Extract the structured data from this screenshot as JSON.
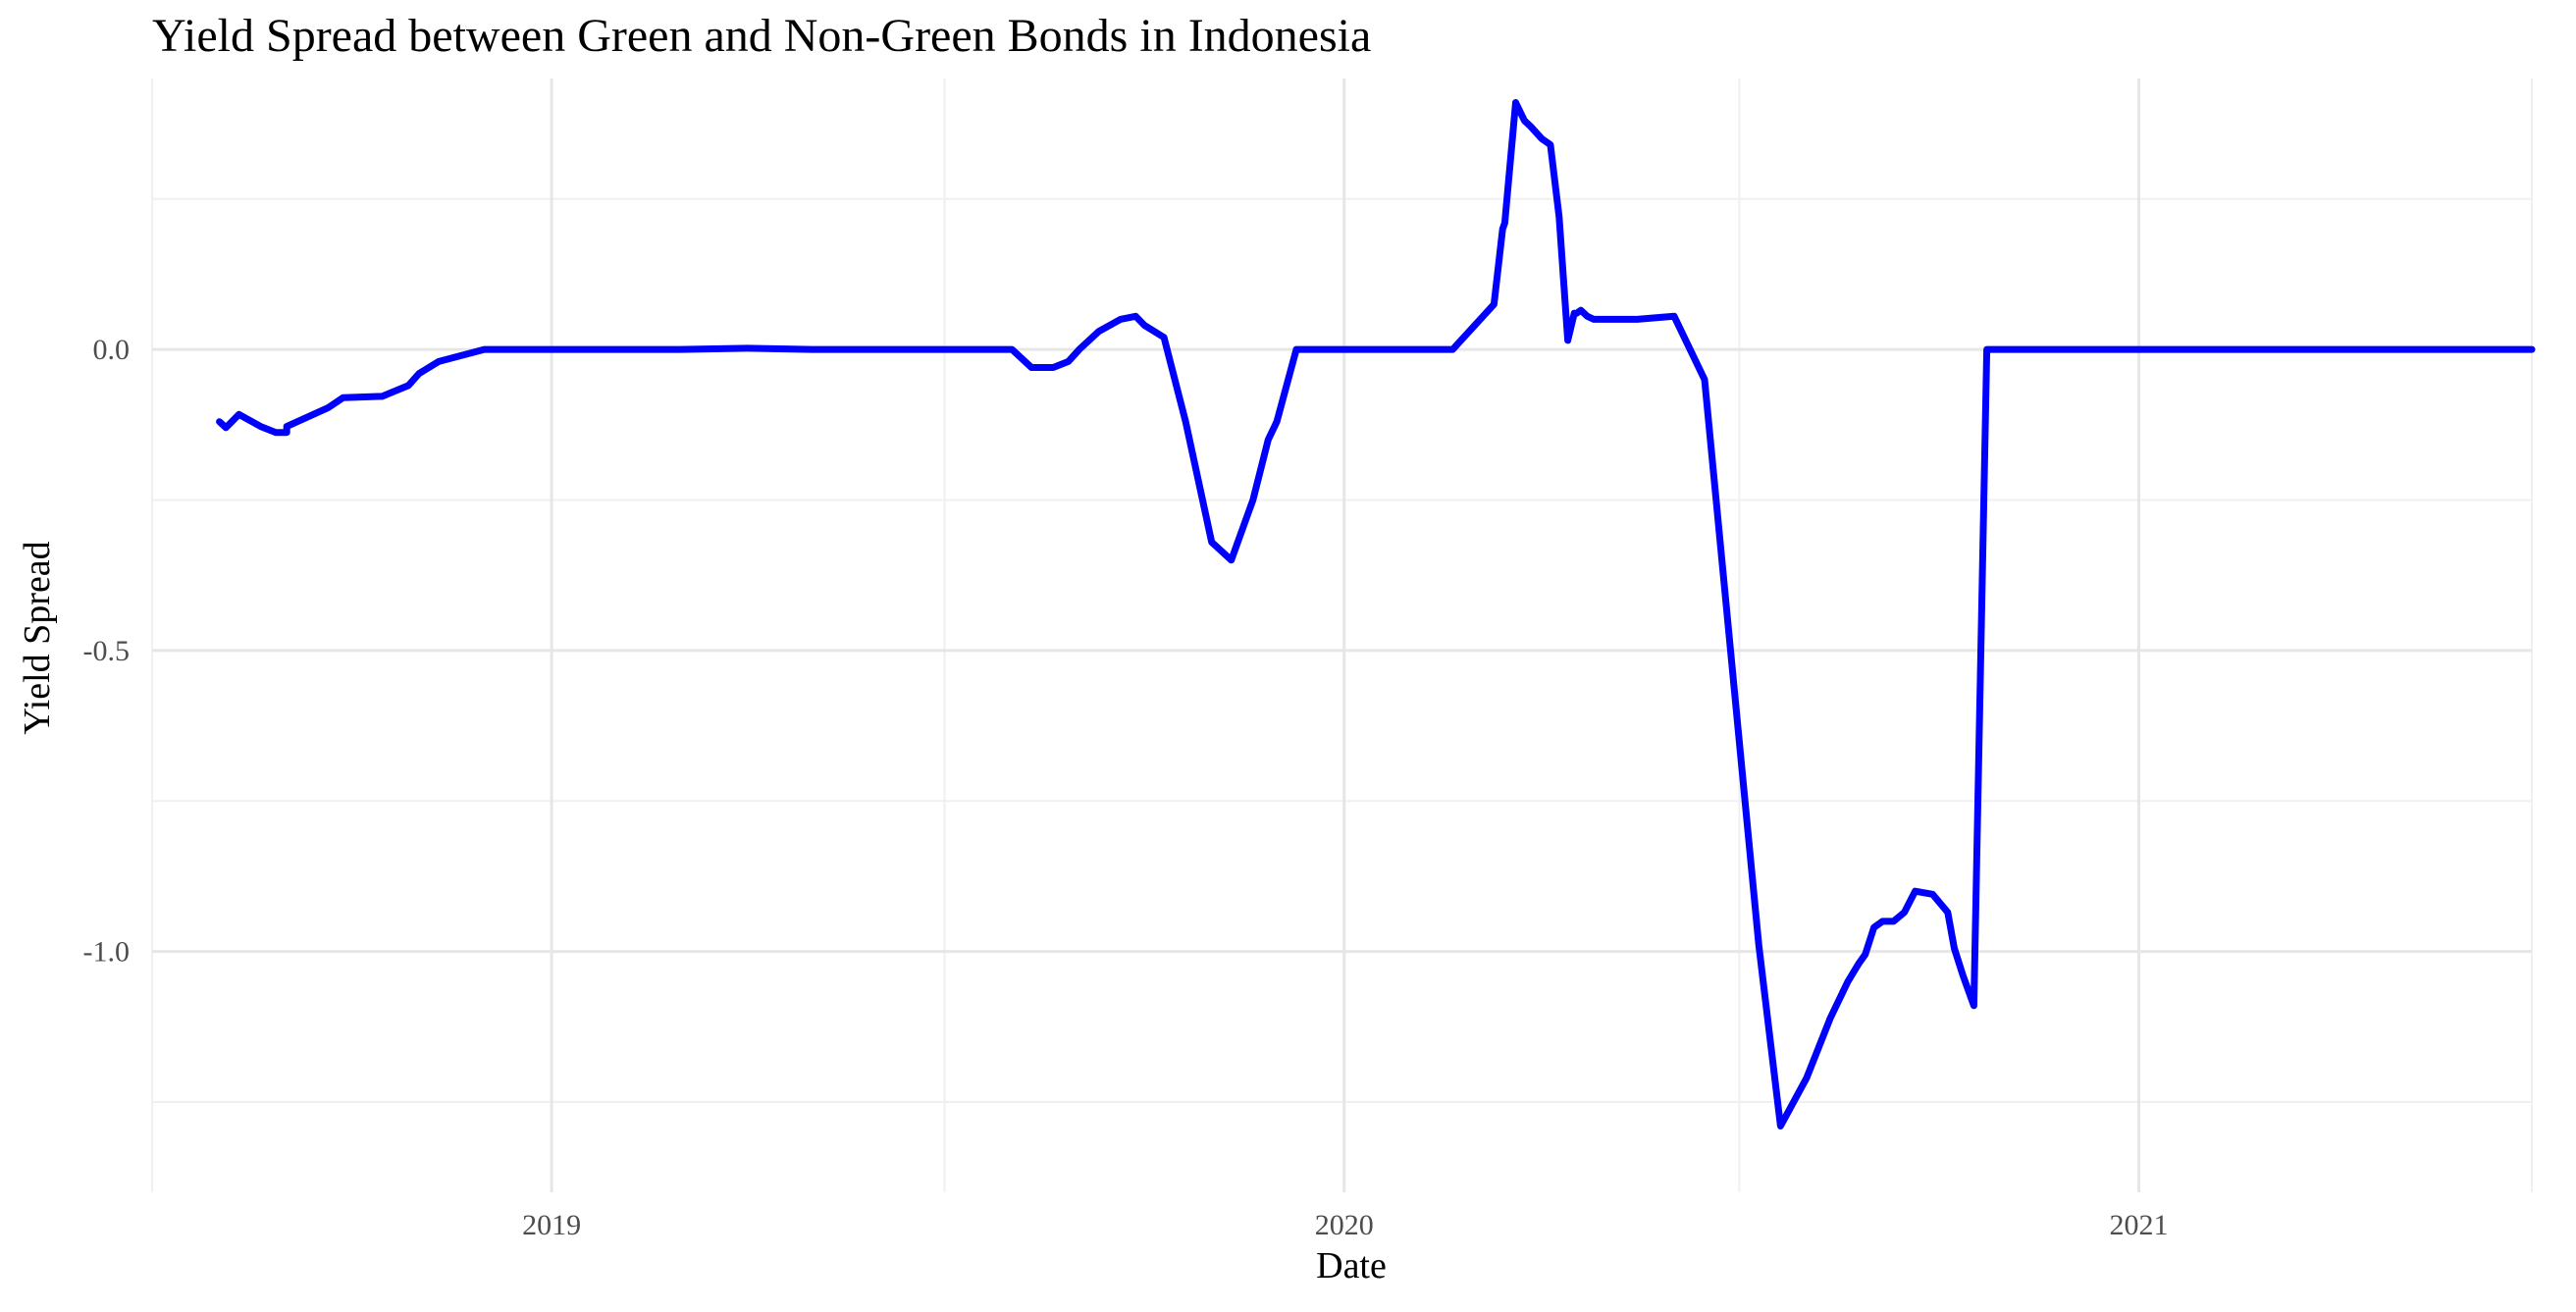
{
  "chart_data": {
    "type": "line",
    "title": "Yield Spread between Green and Non-Green Bonds in Indonesia",
    "xlabel": "Date",
    "ylabel": "Yield Spread",
    "x_ticks": [
      "2019",
      "2020",
      "2021"
    ],
    "y_ticks": [
      "0.0",
      "-0.5",
      "-1.0"
    ],
    "xlim": [
      "2018-07-01",
      "2021-07-01"
    ],
    "ylim": [
      -1.4,
      0.45
    ],
    "grid": true,
    "legend": "none",
    "series_color": "#0000ff",
    "series": [
      {
        "x": [
          "2018-08-01",
          "2018-08-04",
          "2018-08-10",
          "2018-08-20",
          "2018-08-27",
          "2018-09-01",
          "2018-09-01",
          "2018-09-20",
          "2018-09-27",
          "2018-10-15",
          "2018-10-27",
          "2018-11-01",
          "2018-11-10",
          "2018-12-01",
          "2019-01-01",
          "2019-02-01",
          "2019-03-01",
          "2019-04-01",
          "2019-05-01",
          "2019-06-01",
          "2019-07-01",
          "2019-08-01",
          "2019-08-10",
          "2019-08-20",
          "2019-08-27",
          "2019-09-01",
          "2019-09-10",
          "2019-09-20",
          "2019-09-27",
          "2019-10-01",
          "2019-10-10",
          "2019-10-20",
          "2019-11-01",
          "2019-11-10",
          "2019-11-20",
          "2019-11-27",
          "2019-12-01",
          "2019-12-10",
          "2020-01-01",
          "2020-01-15",
          "2020-02-01",
          "2020-02-20",
          "2020-03-10",
          "2020-03-14",
          "2020-03-15",
          "2020-03-20",
          "2020-03-24",
          "2020-03-27",
          "2020-04-01",
          "2020-04-05",
          "2020-04-09",
          "2020-04-13",
          "2020-04-16",
          "2020-04-17",
          "2020-04-19",
          "2020-04-22",
          "2020-04-25",
          "2020-05-01",
          "2020-05-08",
          "2020-05-15",
          "2020-06-01",
          "2020-06-15",
          "2020-07-10",
          "2020-07-20",
          "2020-08-01",
          "2020-08-12",
          "2020-08-20",
          "2020-08-25",
          "2020-08-28",
          "2020-09-01",
          "2020-09-05",
          "2020-09-10",
          "2020-09-15",
          "2020-09-20",
          "2020-09-28",
          "2020-10-05",
          "2020-10-08",
          "2020-10-12",
          "2020-10-17",
          "2020-10-23",
          "2020-10-28",
          "2020-11-01",
          "2020-11-05",
          "2020-11-10",
          "2020-11-15",
          "2020-11-20",
          "2020-11-26",
          "2020-12-01",
          "2020-12-10",
          "2021-01-01",
          "2021-07-01"
        ],
        "y": [
          -0.12,
          -0.13,
          -0.108,
          -0.128,
          -0.138,
          -0.138,
          -0.128,
          -0.097,
          -0.08,
          -0.078,
          -0.06,
          -0.04,
          -0.02,
          0.0,
          0.0,
          0.0,
          0.0,
          0.002,
          0.0,
          0.0,
          0.0,
          0.0,
          -0.03,
          -0.03,
          -0.02,
          0.0,
          0.03,
          0.05,
          0.055,
          0.04,
          0.02,
          -0.12,
          -0.32,
          -0.35,
          -0.25,
          -0.15,
          -0.12,
          0.0,
          0.0,
          0.0,
          0.0,
          0.0,
          0.075,
          0.2,
          0.21,
          0.41,
          0.38,
          0.37,
          0.35,
          0.34,
          0.22,
          0.015,
          0.06,
          0.06,
          0.065,
          0.055,
          0.05,
          0.05,
          0.05,
          0.05,
          0.055,
          -0.05,
          -0.99,
          -1.29,
          -1.21,
          -1.11,
          -1.05,
          -1.02,
          -1.005,
          -0.96,
          -0.95,
          -0.95,
          -0.935,
          -0.9,
          -0.905,
          -0.935,
          -0.995,
          -1.04,
          -1.09,
          0.0,
          0.0,
          0.0,
          0.0,
          0.0,
          0.0,
          0.0,
          0.0,
          0.0,
          0.0,
          0.0,
          0.0
        ]
      }
    ]
  }
}
